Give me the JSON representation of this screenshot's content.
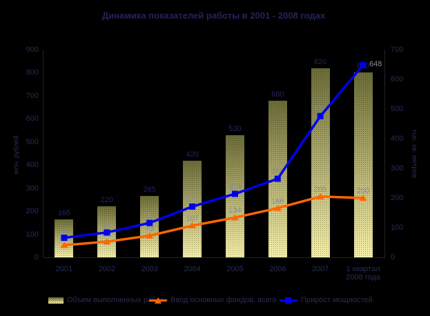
{
  "title": "Динамика показателей работы в 2001 - 2008 годах",
  "colors": {
    "background": "#000000",
    "title_text": "#23235c",
    "axis_text": "#2b2b55",
    "line_data_label": "#8b8b8b",
    "bar_value_label": "#23235c",
    "bar_gradient_top": "#6b6b38",
    "bar_gradient_bottom": "#f5efa8",
    "blue_line": "#0000ee",
    "orange_line": "#ff6600"
  },
  "chart_data": {
    "type": "bar",
    "subtype": "combo: bars + 2 lines, dual value axes, black background",
    "title": "Динамика показателей работы в 2001 - 2008 годах",
    "categories": [
      "2001",
      "2002",
      "2003",
      "2004",
      "2005",
      "2006",
      "2007",
      "1 квартал\n2008 года"
    ],
    "series": [
      {
        "name": "Объем выполненных работ",
        "type": "bar",
        "axis": "left",
        "values": [
          165,
          220,
          265,
          420,
          530,
          680,
          820,
          800
        ]
      },
      {
        "name": "Ввод основных фондов, всего",
        "type": "line",
        "marker": "triangle",
        "axis": "right",
        "values": [
          41,
          53,
          73,
          107,
          134,
          166,
          205,
          200
        ]
      },
      {
        "name": "Прирост мощностей",
        "type": "line",
        "marker": "square",
        "axis": "right",
        "values": [
          66,
          84,
          116,
          171,
          214,
          265,
          476,
          648
        ]
      }
    ],
    "left_axis": {
      "title": "млн. рублей",
      "min": 0,
      "max": 900,
      "step": 100
    },
    "right_axis": {
      "title": "тыс. кв. метров",
      "min": 0,
      "max": 700,
      "step": 100
    },
    "legend_position": "bottom",
    "grid": false,
    "data_labels": true
  }
}
